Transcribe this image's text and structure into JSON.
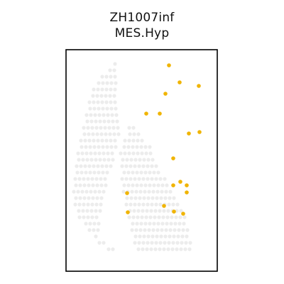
{
  "chart_data": {
    "type": "scatter",
    "title_lines": [
      "ZH1007inf",
      "MES.Hyp"
    ],
    "xlabel": "",
    "ylabel": "",
    "axes_ticks": "none",
    "legend": "none",
    "colors": {
      "background_spots": "#ececec",
      "highlight_spots": "#f0b400",
      "frame": "#000000"
    },
    "series": [
      {
        "role": "background",
        "shape": "hex-spot tissue silhouette",
        "tissue_band_rows": [
          [
            [
              162,
              166
            ]
          ],
          [
            [
              152,
              166
            ]
          ],
          [
            [
              144,
              166
            ]
          ],
          [
            [
              136,
              166
            ]
          ],
          [
            [
              132,
              166
            ]
          ],
          [
            [
              128,
              166
            ]
          ],
          [
            [
              126,
              166
            ]
          ],
          [
            [
              124,
              166
            ]
          ],
          [
            [
              122,
              166
            ]
          ],
          [
            [
              120,
              166
            ]
          ],
          [
            [
              118,
              168
            ],
            [
              182,
              190
            ]
          ],
          [
            [
              116,
              168
            ],
            [
              180,
              196
            ]
          ],
          [
            [
              114,
              166
            ],
            [
              176,
              204
            ]
          ],
          [
            [
              112,
              164
            ],
            [
              172,
              212
            ]
          ],
          [
            [
              110,
              162
            ],
            [
              170,
              216
            ]
          ],
          [
            [
              108,
              160
            ],
            [
              170,
              218
            ]
          ],
          [
            [
              108,
              158
            ],
            [
              172,
              222
            ]
          ],
          [
            [
              106,
              156
            ],
            [
              172,
              228
            ]
          ],
          [
            [
              106,
              152
            ],
            [
              172,
              232
            ]
          ],
          [
            [
              104,
              150
            ],
            [
              172,
              238
            ]
          ],
          [
            [
              104,
              148
            ],
            [
              174,
              242
            ]
          ],
          [
            [
              104,
              146
            ],
            [
              176,
              248
            ]
          ],
          [
            [
              106,
              144
            ],
            [
              178,
              254
            ]
          ],
          [
            [
              108,
              142
            ],
            [
              180,
              258
            ]
          ],
          [
            [
              112,
              140
            ],
            [
              182,
              260
            ]
          ],
          [
            [
              118,
              140
            ],
            [
              184,
              262
            ]
          ],
          [
            [
              126,
              140
            ],
            [
              186,
              264
            ]
          ],
          [
            [
              132,
              140
            ],
            [
              188,
              266
            ]
          ],
          [
            [
              140,
              150
            ],
            [
              190,
              268
            ]
          ],
          [
            [
              150,
              160
            ],
            [
              192,
              270
            ]
          ]
        ]
      },
      {
        "role": "highlight",
        "name": "MES.Hyp",
        "points": [
          [
            238,
            92
          ],
          [
            253,
            116
          ],
          [
            280,
            121
          ],
          [
            233,
            132
          ],
          [
            206,
            160
          ],
          [
            225,
            160
          ],
          [
            266,
            188
          ],
          [
            281,
            186
          ],
          [
            244,
            223
          ],
          [
            254,
            256
          ],
          [
            244,
            261
          ],
          [
            263,
            261
          ],
          [
            263,
            271
          ],
          [
            179,
            272
          ],
          [
            231,
            290
          ],
          [
            245,
            298
          ],
          [
            258,
            301
          ],
          [
            180,
            299
          ]
        ]
      }
    ]
  }
}
